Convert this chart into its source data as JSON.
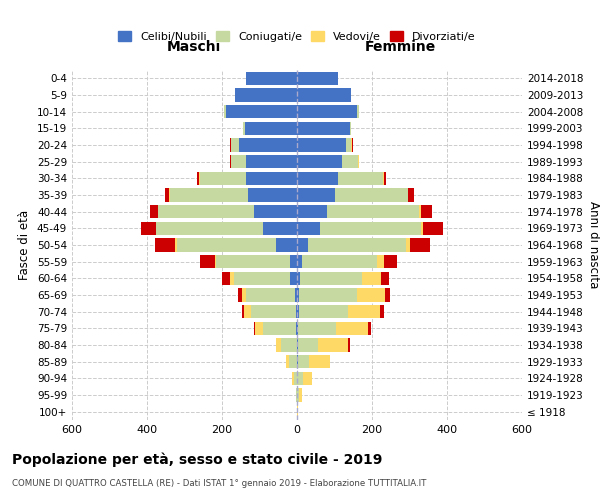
{
  "age_groups": [
    "0-4",
    "5-9",
    "10-14",
    "15-19",
    "20-24",
    "25-29",
    "30-34",
    "35-39",
    "40-44",
    "45-49",
    "50-54",
    "55-59",
    "60-64",
    "65-69",
    "70-74",
    "75-79",
    "80-84",
    "85-89",
    "90-94",
    "95-99",
    "100+"
  ],
  "birth_years": [
    "2014-2018",
    "2009-2013",
    "2004-2008",
    "1999-2003",
    "1994-1998",
    "1989-1993",
    "1984-1988",
    "1979-1983",
    "1974-1978",
    "1969-1973",
    "1964-1968",
    "1959-1963",
    "1954-1958",
    "1949-1953",
    "1944-1948",
    "1939-1943",
    "1934-1938",
    "1929-1933",
    "1924-1928",
    "1919-1923",
    "≤ 1918"
  ],
  "maschi": {
    "celibi": [
      135,
      165,
      190,
      140,
      155,
      135,
      135,
      130,
      115,
      90,
      55,
      20,
      18,
      5,
      4,
      2,
      0,
      0,
      0,
      0,
      0
    ],
    "coniugati": [
      0,
      0,
      5,
      5,
      20,
      40,
      125,
      210,
      255,
      285,
      265,
      195,
      150,
      130,
      120,
      90,
      42,
      22,
      8,
      2,
      0
    ],
    "vedovi": [
      0,
      0,
      0,
      0,
      2,
      2,
      2,
      2,
      2,
      2,
      5,
      5,
      10,
      12,
      18,
      20,
      15,
      8,
      5,
      2,
      0
    ],
    "divorziati": [
      0,
      0,
      0,
      0,
      2,
      2,
      5,
      10,
      20,
      40,
      55,
      40,
      22,
      10,
      5,
      2,
      0,
      0,
      0,
      0,
      0
    ]
  },
  "femmine": {
    "nubili": [
      110,
      145,
      160,
      140,
      130,
      120,
      110,
      100,
      80,
      60,
      30,
      12,
      8,
      5,
      5,
      3,
      2,
      2,
      0,
      0,
      0
    ],
    "coniugate": [
      0,
      0,
      5,
      5,
      15,
      42,
      120,
      195,
      245,
      270,
      260,
      200,
      165,
      155,
      130,
      100,
      55,
      30,
      15,
      5,
      0
    ],
    "vedove": [
      0,
      0,
      0,
      0,
      2,
      2,
      2,
      2,
      5,
      5,
      10,
      20,
      50,
      75,
      85,
      85,
      80,
      55,
      25,
      8,
      2
    ],
    "divorziate": [
      0,
      0,
      0,
      0,
      2,
      2,
      5,
      15,
      30,
      55,
      55,
      35,
      22,
      12,
      12,
      8,
      5,
      2,
      0,
      0,
      0
    ]
  },
  "colors": {
    "celibi": "#4472C4",
    "coniugati": "#c5d9a0",
    "vedovi": "#FFD966",
    "divorziati": "#CC0000"
  },
  "xlim": 600,
  "title": "Popolazione per età, sesso e stato civile - 2019",
  "subtitle": "COMUNE DI QUATTRO CASTELLA (RE) - Dati ISTAT 1° gennaio 2019 - Elaborazione TUTTITALIA.IT",
  "ylabel_left": "Fasce di età",
  "ylabel_right": "Anni di nascita",
  "xlabel_left": "Maschi",
  "xlabel_right": "Femmine",
  "legend_labels": [
    "Celibi/Nubili",
    "Coniugati/e",
    "Vedovi/e",
    "Divorziati/e"
  ],
  "background_color": "#ffffff",
  "grid_color": "#cccccc"
}
